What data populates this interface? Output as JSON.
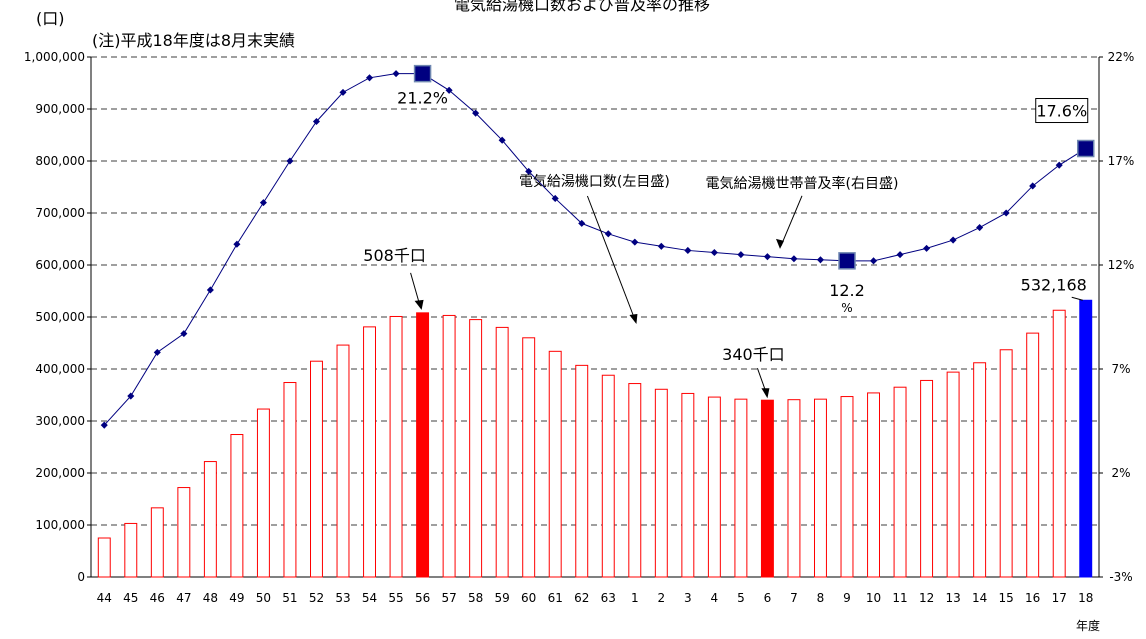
{
  "chart_data": {
    "type": "bar",
    "title": "電気給湯機口数および普及率の推移",
    "note": "(注)平成18年度は8月末実績",
    "y_unit": "(口)",
    "xlabel": "年度",
    "categories": [
      "44",
      "45",
      "46",
      "47",
      "48",
      "49",
      "50",
      "51",
      "52",
      "53",
      "54",
      "55",
      "56",
      "57",
      "58",
      "59",
      "60",
      "61",
      "62",
      "63",
      "1",
      "2",
      "3",
      "4",
      "5",
      "6",
      "7",
      "8",
      "9",
      "10",
      "11",
      "12",
      "13",
      "14",
      "15",
      "16",
      "17",
      "18"
    ],
    "ylim": [
      0,
      1000000
    ],
    "y_ticks": [
      "0",
      "100,000",
      "200,000",
      "300,000",
      "400,000",
      "500,000",
      "600,000",
      "700,000",
      "800,000",
      "900,000",
      "1,000,000"
    ],
    "y2lim": [
      -3,
      22
    ],
    "y2_ticks": [
      "-3%",
      "2%",
      "7%",
      "12%",
      "17%",
      "22%"
    ],
    "grid": true,
    "series": [
      {
        "name": "電気給湯機口数(左目盛)",
        "type": "bar",
        "axis": "left",
        "values": [
          75000,
          103000,
          133000,
          172000,
          222000,
          274000,
          323000,
          374000,
          415000,
          446000,
          481000,
          501000,
          508000,
          503000,
          495000,
          480000,
          460000,
          434000,
          407000,
          388000,
          372000,
          361000,
          353000,
          346000,
          342000,
          340000,
          341000,
          342000,
          347000,
          354000,
          365000,
          378000,
          394000,
          412000,
          437000,
          469000,
          513000,
          532168
        ],
        "highlight_indices": [
          12,
          25,
          37
        ],
        "color": "#ff0000",
        "highlight_colors": [
          "#ff0000",
          "#ff0000",
          "#0000ff"
        ]
      },
      {
        "name": "電気給湯機世帯普及率(右目盛)",
        "type": "line",
        "axis": "right",
        "values": [
          4.3,
          5.7,
          7.8,
          8.7,
          10.8,
          13.0,
          15.0,
          17.0,
          18.9,
          20.3,
          21.0,
          21.2,
          21.2,
          20.4,
          19.3,
          18.0,
          16.5,
          15.2,
          14.0,
          13.5,
          13.1,
          12.9,
          12.7,
          12.6,
          12.5,
          12.4,
          12.3,
          12.25,
          12.2,
          12.2,
          12.5,
          12.8,
          13.2,
          13.8,
          14.5,
          15.8,
          16.8,
          17.6
        ],
        "color": "#000080",
        "marker_highlight_indices": [
          12,
          28,
          37
        ]
      }
    ],
    "annotations": [
      {
        "text": "508千口",
        "index": 12
      },
      {
        "text": "21.2%",
        "index": 12
      },
      {
        "text": "340千口",
        "index": 25
      },
      {
        "text": "12.2",
        "index": 28
      },
      {
        "text": "%",
        "index": 28
      },
      {
        "text": "17.6%",
        "index": 37
      },
      {
        "text": "532,168",
        "index": 37
      },
      {
        "text": "電気給湯機口数(左目盛)",
        "index": 25
      },
      {
        "text": "電気給湯機世帯普及率(右目盛)",
        "index": 28
      }
    ]
  }
}
